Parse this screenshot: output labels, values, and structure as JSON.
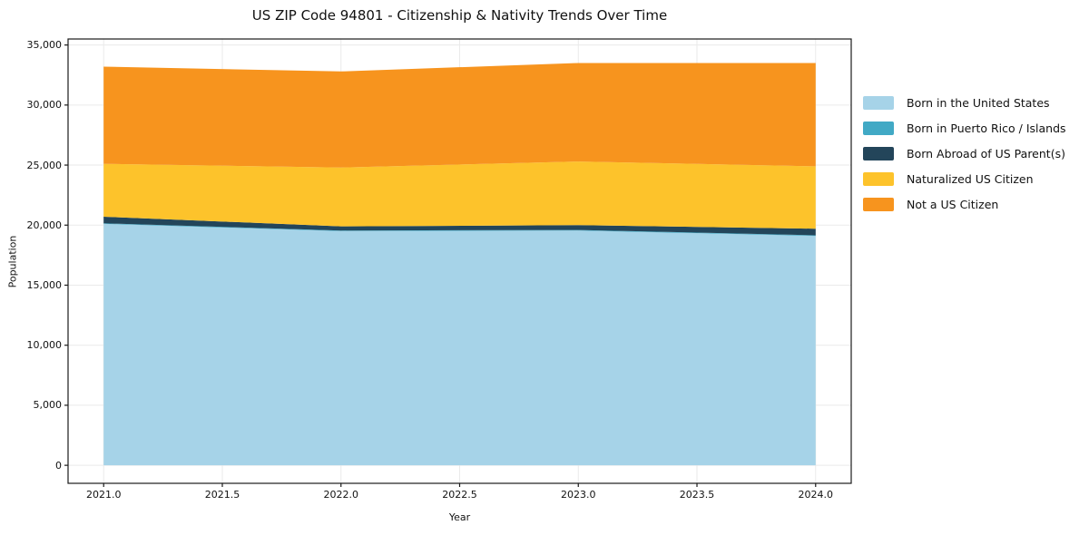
{
  "chart_data": {
    "type": "area",
    "stacked": true,
    "title": "US ZIP Code 94801 - Citizenship & Nativity Trends Over Time",
    "xlabel": "Year",
    "ylabel": "Population",
    "x": [
      2021,
      2022,
      2023,
      2024
    ],
    "series": [
      {
        "name": "Born in the United States",
        "color": "#a6d3e8",
        "values": [
          20100,
          19500,
          19550,
          19100
        ]
      },
      {
        "name": "Born in Puerto Rico / Islands",
        "color": "#41a9c5",
        "values": [
          50,
          50,
          50,
          50
        ]
      },
      {
        "name": "Born Abroad of US Parent(s)",
        "color": "#23455a",
        "values": [
          550,
          350,
          400,
          550
        ]
      },
      {
        "name": "Naturalized US Citizen",
        "color": "#fdc32b",
        "values": [
          4400,
          4900,
          5300,
          5200
        ]
      },
      {
        "name": "Not a US Citizen",
        "color": "#f7941e",
        "values": [
          8100,
          8000,
          8200,
          8600
        ]
      }
    ],
    "x_ticks": [
      {
        "value": 2021.0,
        "label": "2021.0"
      },
      {
        "value": 2021.5,
        "label": "2021.5"
      },
      {
        "value": 2022.0,
        "label": "2022.0"
      },
      {
        "value": 2022.5,
        "label": "2022.5"
      },
      {
        "value": 2023.0,
        "label": "2023.0"
      },
      {
        "value": 2023.5,
        "label": "2023.5"
      },
      {
        "value": 2024.0,
        "label": "2024.0"
      }
    ],
    "y_ticks": [
      {
        "value": 0,
        "label": "0"
      },
      {
        "value": 5000,
        "label": "5,000"
      },
      {
        "value": 10000,
        "label": "10,000"
      },
      {
        "value": 15000,
        "label": "15,000"
      },
      {
        "value": 20000,
        "label": "20,000"
      },
      {
        "value": 25000,
        "label": "25,000"
      },
      {
        "value": 30000,
        "label": "30,000"
      },
      {
        "value": 35000,
        "label": "35,000"
      }
    ],
    "xlim": [
      2020.85,
      2024.15
    ],
    "ylim": [
      -1500,
      35500
    ],
    "grid": true,
    "legend_position": "right-outside",
    "colors": {
      "grid": "#eaeaea",
      "spine": "#1a1a1a",
      "background": "#ffffff"
    }
  }
}
